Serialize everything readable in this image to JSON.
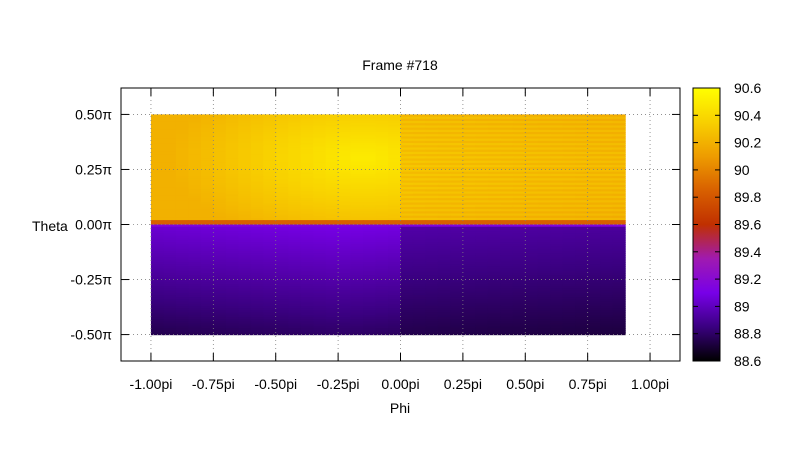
{
  "chart_data": {
    "type": "heatmap",
    "title": "Frame #718",
    "xlabel": "Phi",
    "ylabel": "Theta",
    "xlim": [
      -1.12,
      1.12
    ],
    "ylim": [
      -0.62,
      0.62
    ],
    "x_ticks": [
      {
        "value": -1.0,
        "label": "-1.00pi"
      },
      {
        "value": -0.75,
        "label": "-0.75pi"
      },
      {
        "value": -0.5,
        "label": "-0.50pi"
      },
      {
        "value": -0.25,
        "label": "-0.25pi"
      },
      {
        "value": 0.0,
        "label": "0.00pi"
      },
      {
        "value": 0.25,
        "label": "0.25pi"
      },
      {
        "value": 0.5,
        "label": "0.50pi"
      },
      {
        "value": 0.75,
        "label": "0.75pi"
      },
      {
        "value": 1.0,
        "label": "1.00pi"
      }
    ],
    "y_ticks": [
      {
        "value": 0.5,
        "label": "0.50π"
      },
      {
        "value": 0.25,
        "label": "0.25π"
      },
      {
        "value": 0.0,
        "label": "0.00π"
      },
      {
        "value": -0.25,
        "label": "-0.25π"
      },
      {
        "value": -0.5,
        "label": "-0.50π"
      }
    ],
    "grid": true,
    "colorbar": {
      "range": [
        88.6,
        90.6
      ],
      "ticks": [
        "90.6",
        "90.4",
        "90.2",
        "90",
        "89.8",
        "89.6",
        "89.4",
        "89.2",
        "89",
        "88.8",
        "88.6"
      ],
      "palette": [
        "#000000",
        "#3a0080",
        "#7800e8",
        "#a01ab0",
        "#c03000",
        "#d86000",
        "#ee9c00",
        "#f8d000",
        "#ffff00"
      ]
    },
    "data_extent": {
      "phi": [
        -1.0,
        0.9
      ],
      "theta": [
        -0.5,
        0.5
      ]
    },
    "regions": [
      {
        "name": "upper-left",
        "phi": [
          -1.0,
          0.0
        ],
        "theta": [
          0.0,
          0.5
        ],
        "min": 90.2,
        "max": 90.5,
        "peak_phi": -0.15,
        "peak_theta": 0.3
      },
      {
        "name": "upper-right",
        "phi": [
          0.0,
          0.9
        ],
        "theta": [
          0.0,
          0.5
        ],
        "min": 90.15,
        "max": 90.3
      },
      {
        "name": "lower-left",
        "phi": [
          -1.0,
          0.0
        ],
        "theta": [
          -0.5,
          0.0
        ],
        "min": 88.75,
        "max": 89.05
      },
      {
        "name": "lower-right",
        "phi": [
          0.0,
          0.9
        ],
        "theta": [
          -0.5,
          0.0
        ],
        "min": 88.75,
        "max": 88.95
      }
    ]
  }
}
